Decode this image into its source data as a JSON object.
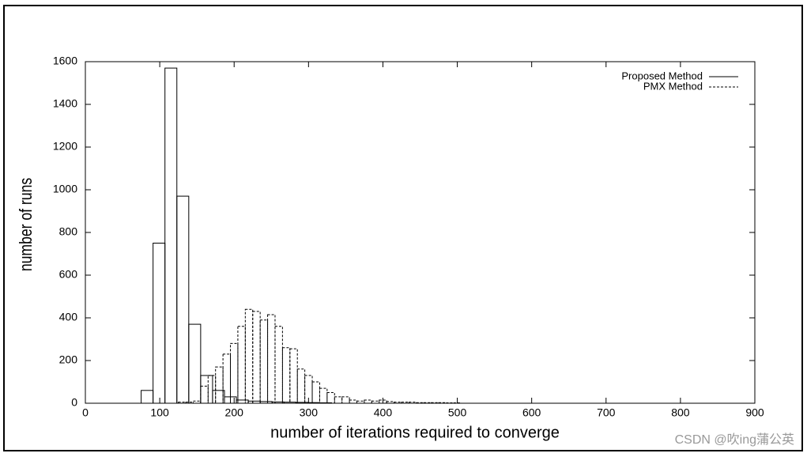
{
  "chart_data": {
    "type": "histogram",
    "xlabel": "number of iterations required to converge",
    "ylabel": "number of runs",
    "xlim": [
      0,
      900
    ],
    "xticks": [
      0,
      100,
      200,
      300,
      400,
      500,
      600,
      700,
      800,
      900
    ],
    "ylim": [
      0,
      1600
    ],
    "yticks": [
      0,
      200,
      400,
      600,
      800,
      1000,
      1200,
      1400,
      1600
    ],
    "legend": "upper right",
    "series": [
      {
        "name": "Proposed Method",
        "color": "#000000",
        "dash": "solid",
        "bins": [
          75,
          91,
          107,
          123,
          139,
          155,
          171,
          187,
          203,
          219,
          235,
          251,
          267,
          283,
          299,
          315,
          331
        ],
        "values": [
          60,
          750,
          1570,
          970,
          370,
          130,
          60,
          30,
          15,
          10,
          8,
          6,
          5,
          4,
          3,
          2
        ]
      },
      {
        "name": "PMX Method",
        "color": "#000000",
        "dash": "dashed",
        "bins": [
          125,
          135,
          145,
          155,
          165,
          175,
          185,
          195,
          205,
          215,
          225,
          235,
          245,
          255,
          265,
          275,
          285,
          295,
          305,
          315,
          325,
          335,
          345,
          355,
          365,
          375,
          385,
          395,
          405,
          415,
          425,
          435,
          445,
          455,
          465,
          475,
          485,
          495,
          505
        ],
        "values": [
          5,
          5,
          10,
          80,
          130,
          170,
          230,
          280,
          360,
          440,
          430,
          390,
          415,
          360,
          260,
          255,
          160,
          130,
          100,
          70,
          50,
          30,
          30,
          15,
          10,
          15,
          10,
          15,
          8,
          5,
          5,
          5,
          3,
          3,
          3,
          3,
          2,
          2
        ]
      }
    ],
    "watermark": "CSDN @吹ing蒲公英"
  }
}
